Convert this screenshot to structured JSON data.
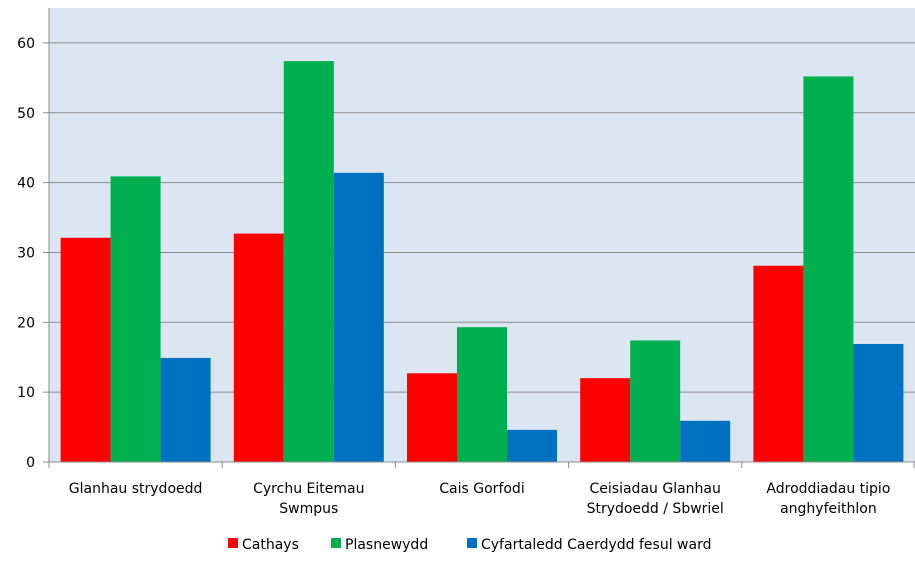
{
  "chart_data": {
    "type": "bar",
    "categories": [
      [
        "Glanhau strydoedd"
      ],
      [
        "Cyrchu Eitemau",
        "Swmpus"
      ],
      [
        "Cais Gorfodi"
      ],
      [
        "Ceisiadau Glanhau",
        "Strydoedd / Sbwriel"
      ],
      [
        "Adroddiadau tipio",
        "anghyfeithlon"
      ]
    ],
    "series": [
      {
        "name": "Cathays",
        "color": "#ff0000",
        "values": [
          32.1,
          32.7,
          12.7,
          12.0,
          28.1
        ]
      },
      {
        "name": "Plasnewydd",
        "color": "#00b050",
        "values": [
          40.9,
          57.4,
          19.3,
          17.4,
          55.2
        ]
      },
      {
        "name": "Cyfartaledd Caerdydd fesul ward",
        "color": "#0070c0",
        "values": [
          14.9,
          41.4,
          4.6,
          5.9,
          16.9
        ]
      }
    ],
    "yticks": [
      "0",
      "10",
      "20",
      "30",
      "40",
      "50",
      "60"
    ],
    "ylim": [
      0,
      65
    ],
    "grid": true,
    "plot_background": "#dce6f2",
    "legend_position": "bottom"
  }
}
